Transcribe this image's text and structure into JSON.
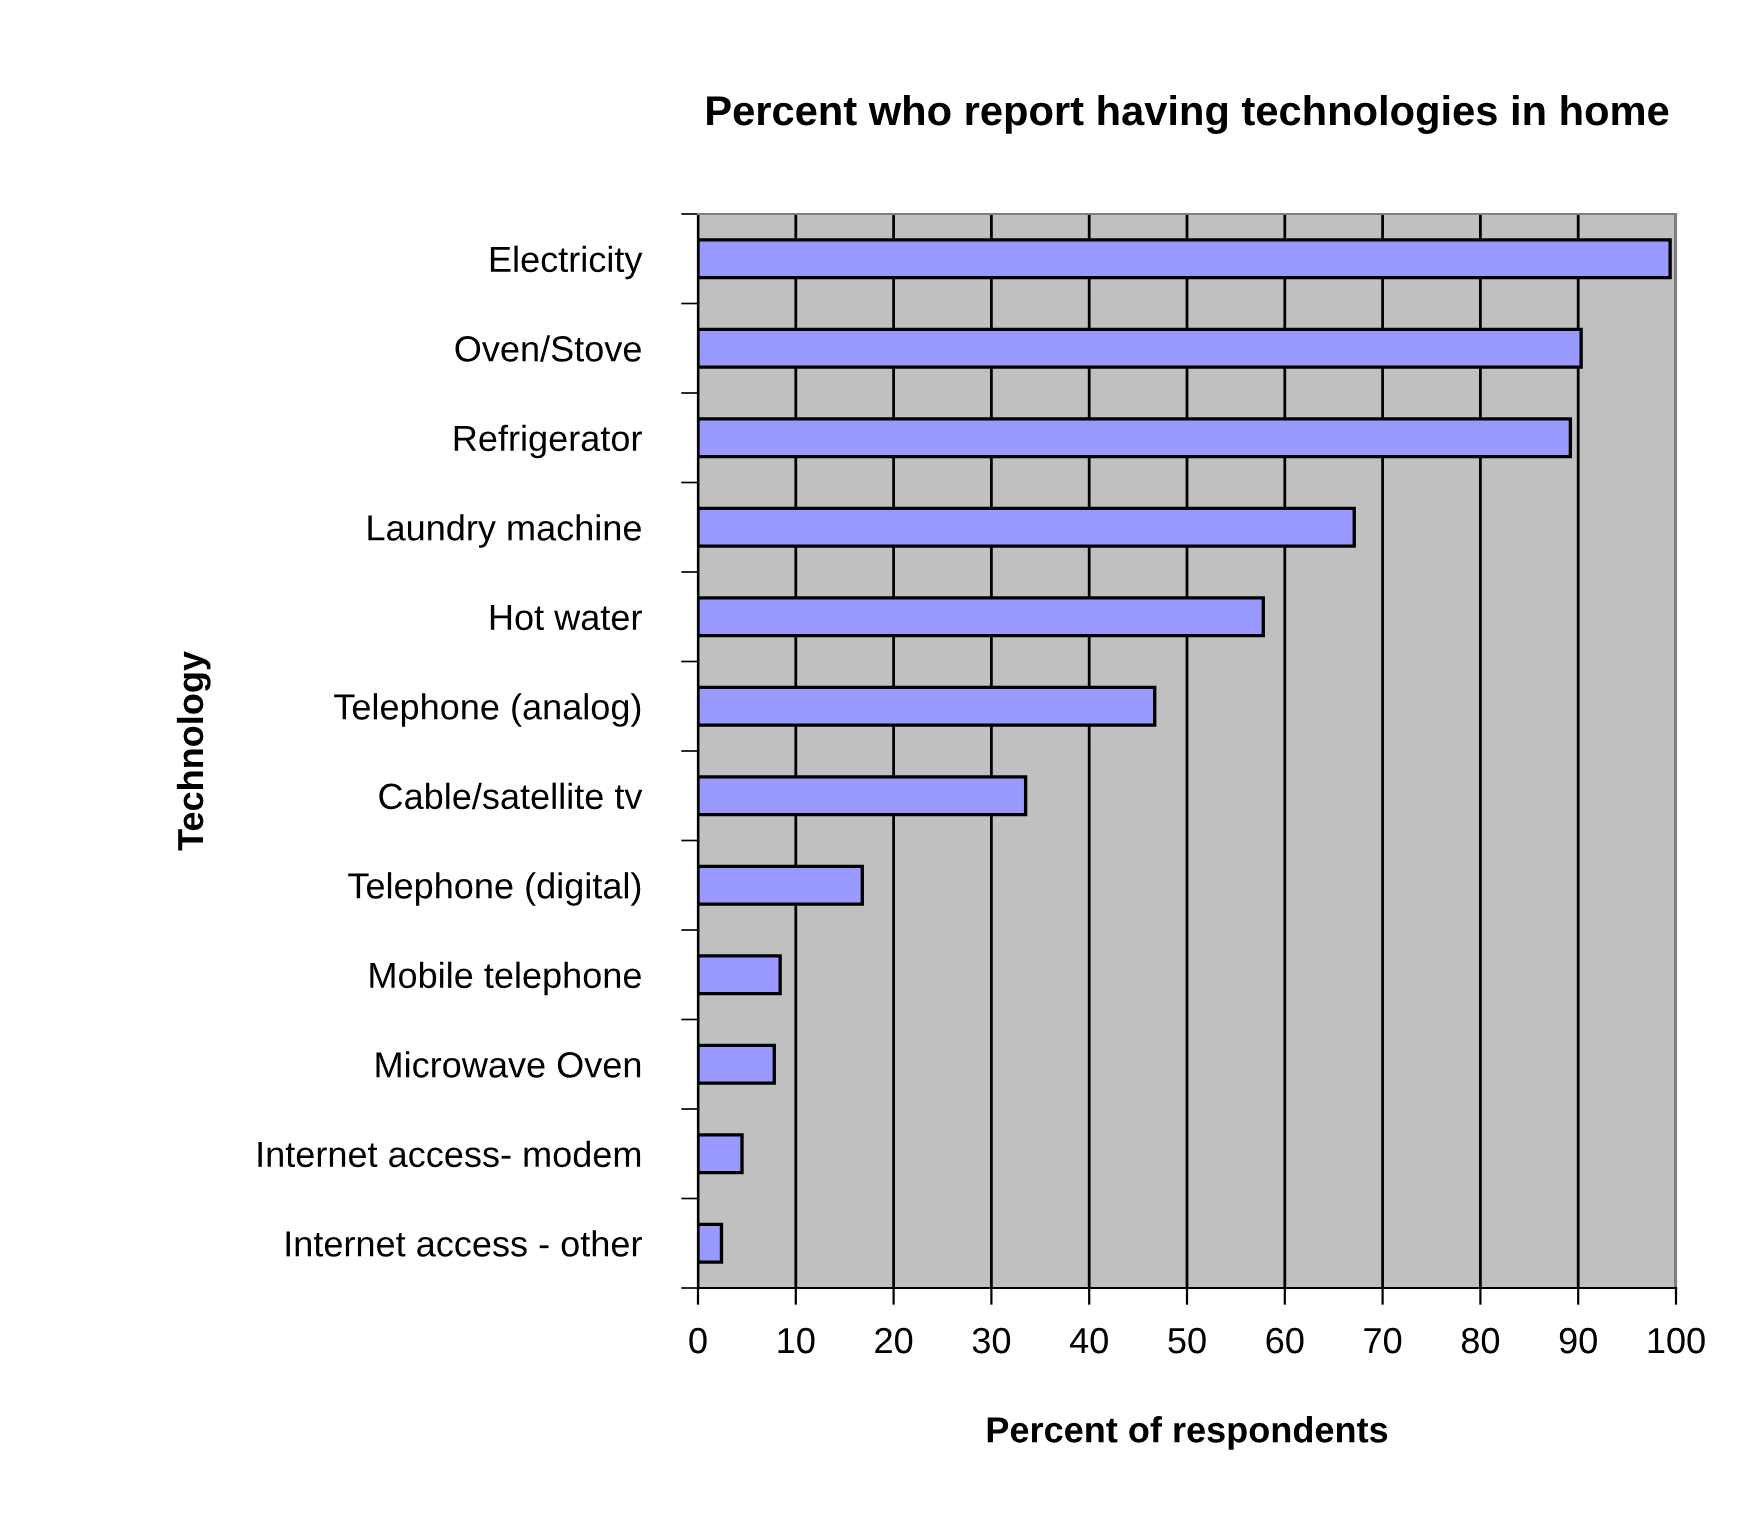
{
  "chart_data": {
    "type": "bar",
    "orientation": "horizontal",
    "title": "Percent who report having technologies in home",
    "xlabel": "Percent of respondents",
    "ylabel": "Technology",
    "categories": [
      "Electricity",
      "Oven/Stove",
      "Refrigerator",
      "Laundry machine",
      "Hot water",
      "Telephone (analog)",
      "Cable/satellite tv",
      "Telephone (digital)",
      "Mobile telephone",
      "Microwave Oven",
      "Internet access- modem",
      "Internet access - other"
    ],
    "values": [
      99.4,
      90.3,
      89.2,
      67.1,
      57.8,
      46.7,
      33.5,
      16.8,
      8.4,
      7.8,
      4.5,
      2.4
    ],
    "color": "#9999ff",
    "xlim": [
      0,
      100
    ],
    "xticks": [
      0,
      10,
      20,
      30,
      40,
      50,
      60,
      70,
      80,
      90,
      100
    ],
    "grid": "x",
    "legend": false
  }
}
